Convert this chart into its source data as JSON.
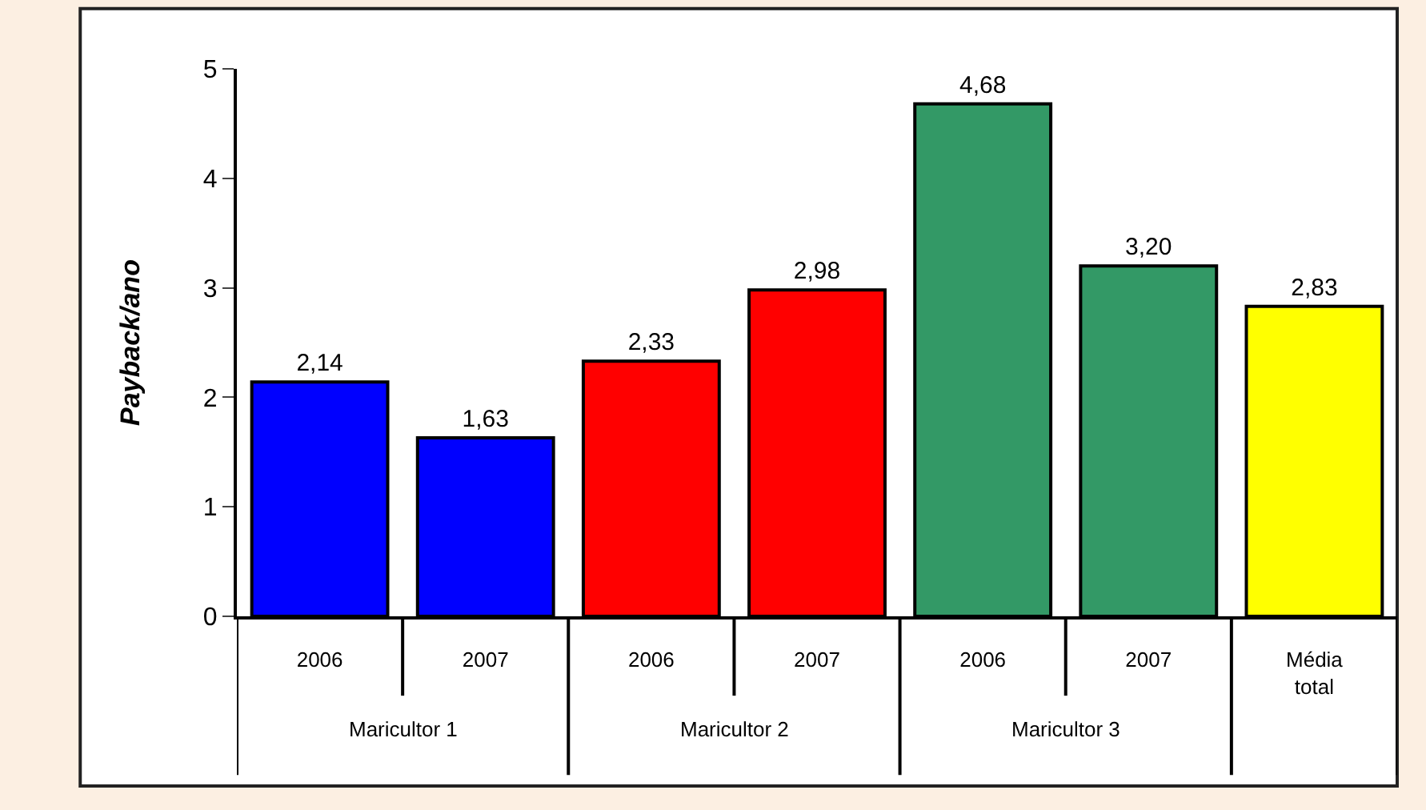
{
  "chart_data": {
    "type": "bar",
    "ylabel": "Payback/ano",
    "categories": [
      "2006",
      "2007",
      "2006",
      "2007",
      "2006",
      "2007",
      "Média total"
    ],
    "values": [
      2.14,
      1.63,
      2.33,
      2.98,
      4.68,
      3.2,
      2.83
    ],
    "colors": [
      "#0000ff",
      "#0000ff",
      "#ff0000",
      "#ff0000",
      "#339966",
      "#339966",
      "#ffff00"
    ],
    "value_labels": [
      "2,14",
      "1,63",
      "2,33",
      "2,98",
      "4,68",
      "3,20",
      "2,83"
    ],
    "ylim": [
      0,
      5
    ],
    "yticks": [
      0,
      1,
      2,
      3,
      4,
      5
    ],
    "grid": false,
    "legend": false,
    "annotations": [
      "Maricultor 1",
      "Maricultor 2",
      "Maricultor 3"
    ]
  }
}
